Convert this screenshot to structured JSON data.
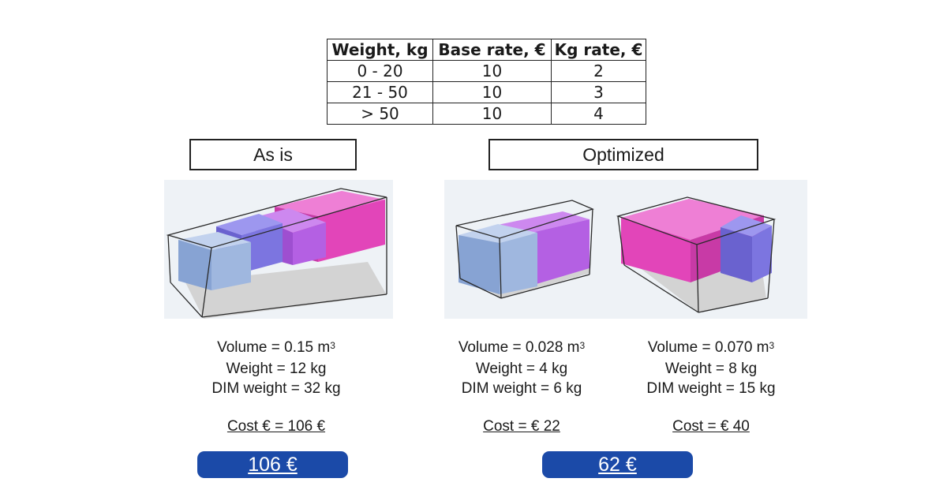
{
  "rate_table": {
    "headers": [
      "Weight, kg",
      "Base rate, €",
      "Kg rate, €"
    ],
    "rows": [
      [
        "0 - 20",
        "10",
        "2"
      ],
      [
        "21 - 50",
        "10",
        "3"
      ],
      [
        "> 50",
        "10",
        "4"
      ]
    ]
  },
  "as_is": {
    "title": "As is",
    "package": {
      "volume": "Volume = 0.15 m",
      "volume_unit_exp": "3",
      "weight": "Weight = 12 kg",
      "dim_weight": "DIM weight = 32 kg",
      "cost": "Cost € = 106 € "
    },
    "total": "106 €"
  },
  "optimized": {
    "title": "Optimized",
    "packages": [
      {
        "volume": "Volume = 0.028 m",
        "volume_unit_exp": "3",
        "weight": "Weight = 4 kg",
        "dim_weight": "DIM weight = 6 kg",
        "cost": "Cost = € 22"
      },
      {
        "volume": "Volume = 0.070 m",
        "volume_unit_exp": "3",
        "weight": "Weight = 8 kg",
        "dim_weight": "DIM weight = 15 kg",
        "cost": "Cost = € 40 "
      }
    ],
    "total": "62 €"
  },
  "colors": {
    "box_blue": "#9fb7df",
    "box_indigo": "#7c75e0",
    "box_violet": "#b460e3",
    "box_magenta": "#e245b9",
    "total_button": "#1b4aa8",
    "scene_background": "#eef2f6"
  }
}
